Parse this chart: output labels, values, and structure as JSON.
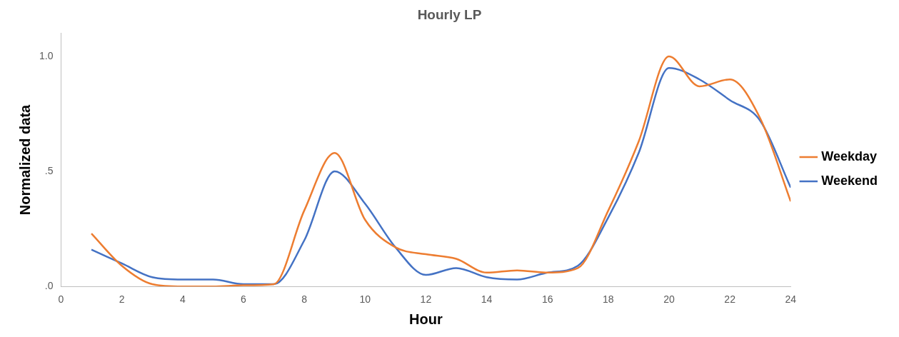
{
  "chart_data": {
    "type": "line",
    "title": "Hourly LP",
    "xlabel": "Hour",
    "ylabel": "Normalized data",
    "x": [
      1,
      2,
      3,
      4,
      5,
      6,
      7,
      8,
      9,
      10,
      11,
      12,
      13,
      14,
      15,
      16,
      17,
      18,
      19,
      20,
      21,
      22,
      23,
      24
    ],
    "series": [
      {
        "name": "Weekday",
        "color": "#ed7d31",
        "values": [
          0.23,
          0.09,
          0.01,
          0.0,
          0.0,
          0.005,
          0.01,
          0.33,
          0.58,
          0.29,
          0.17,
          0.14,
          0.12,
          0.06,
          0.07,
          0.06,
          0.08,
          0.33,
          0.63,
          1.0,
          0.87,
          0.9,
          0.73,
          0.37
        ]
      },
      {
        "name": "Weekend",
        "color": "#4472c4",
        "values": [
          0.16,
          0.1,
          0.04,
          0.03,
          0.03,
          0.01,
          0.01,
          0.2,
          0.5,
          0.36,
          0.17,
          0.05,
          0.08,
          0.04,
          0.03,
          0.06,
          0.09,
          0.3,
          0.58,
          0.95,
          0.9,
          0.81,
          0.72,
          0.43
        ]
      }
    ],
    "xlim": [
      0,
      24
    ],
    "xticks": [
      0,
      2,
      4,
      6,
      8,
      10,
      12,
      14,
      16,
      18,
      20,
      22,
      24
    ],
    "ylim": [
      0,
      1.1
    ],
    "yticks": [
      {
        "value": 0,
        "label": ".0"
      },
      {
        "value": 0.5,
        "label": ".5"
      },
      {
        "value": 1,
        "label": "1.0"
      }
    ],
    "grid": false,
    "legend": "right",
    "marker": "none",
    "line_style": "solid"
  }
}
